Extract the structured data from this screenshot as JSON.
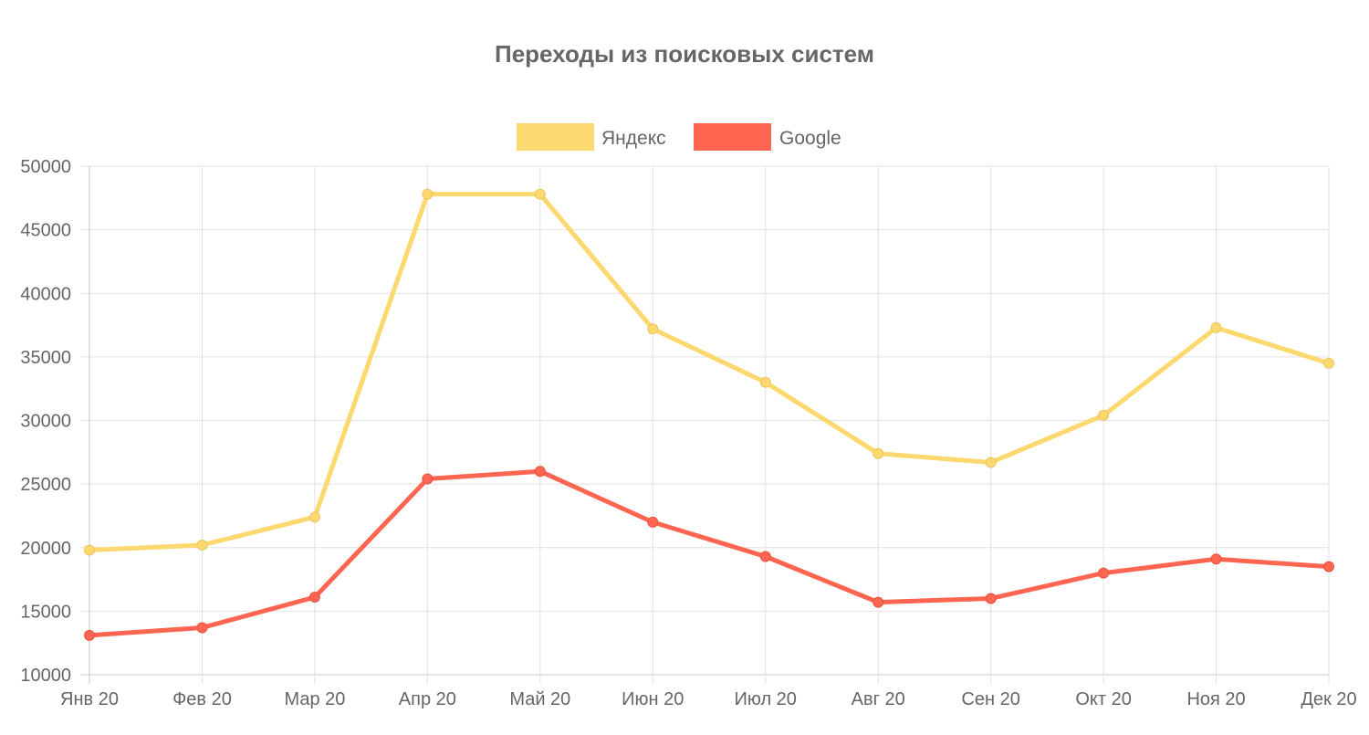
{
  "chart_data": {
    "type": "line",
    "title": "Переходы из поисковых систем",
    "categories": [
      "Янв 20",
      "Фев 20",
      "Мар 20",
      "Апр 20",
      "Май 20",
      "Июн 20",
      "Июл 20",
      "Авг 20",
      "Сен 20",
      "Окт 20",
      "Ноя 20",
      "Дек 20"
    ],
    "series": [
      {
        "name": "Яндекс",
        "color": "#fdd86e",
        "values": [
          19800,
          20200,
          22400,
          47800,
          47800,
          37200,
          33000,
          27400,
          26700,
          30400,
          37300,
          34500
        ]
      },
      {
        "name": "Google",
        "color": "#ff6550",
        "values": [
          13100,
          13700,
          16100,
          25400,
          26000,
          22000,
          19300,
          15700,
          16000,
          18000,
          19100,
          18500
        ]
      }
    ],
    "ylim": [
      10000,
      50000
    ],
    "yticks": [
      "50000",
      "45000",
      "40000",
      "35000",
      "30000",
      "25000",
      "20000",
      "15000",
      "10000"
    ],
    "grid": true,
    "legend": "top"
  }
}
